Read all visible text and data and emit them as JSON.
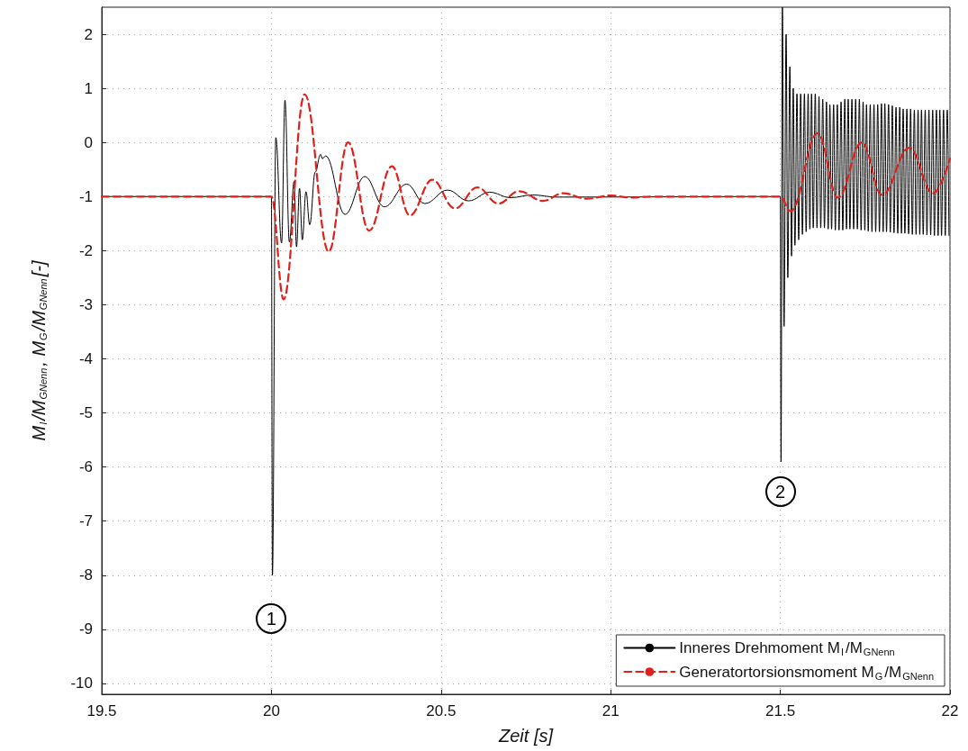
{
  "chart_data": {
    "type": "line",
    "xlabel": "Zeit [s]",
    "ylabel": "M$_{I}$/M$_{GNenn}$, M$_{G}$/M$_{GNenn}$[-]",
    "xlim": [
      19.5,
      22
    ],
    "xticks": [
      19.5,
      20,
      20.5,
      21,
      21.5,
      22
    ],
    "ylim": [
      -10.2,
      2.5
    ],
    "yticks": [
      2,
      1,
      0,
      -1,
      -2,
      -3,
      -4,
      -5,
      -6,
      -7,
      -8,
      -9,
      -10
    ],
    "grid": true,
    "legend": "bottom right",
    "marker": "none",
    "annotations": [
      {
        "text": "1",
        "x": 20.0,
        "y": -8.8
      },
      {
        "text": "2",
        "x": 21.5,
        "y": -6.45
      }
    ],
    "series": [
      {
        "name": "Inneres Drehmoment M$_{I}$/M$_{GNenn}$",
        "color": "#000000",
        "line_style": "solid",
        "x": [
          19.5,
          20.0,
          20.003,
          20.013,
          20.03,
          20.04,
          20.053,
          20.067,
          20.074,
          20.083,
          20.091,
          20.102,
          20.113,
          20.129,
          20.145,
          20.15,
          20.16,
          20.217,
          20.275,
          20.333,
          20.399,
          20.452,
          20.519,
          20.581,
          20.643,
          20.705,
          20.77,
          20.84,
          21.5,
          21.502,
          21.506,
          21.511,
          21.517,
          21.522,
          21.528,
          21.533,
          21.538,
          21.543,
          21.549,
          21.554,
          21.56,
          21.565,
          21.571,
          21.576,
          21.582,
          21.587,
          21.592,
          21.597,
          21.603,
          21.608,
          21.614,
          21.619,
          21.625,
          21.63,
          21.636,
          21.641,
          21.646,
          21.651,
          21.657,
          21.662,
          21.668,
          21.673,
          21.679,
          21.684,
          21.69,
          21.695,
          21.7,
          21.705,
          21.711,
          21.716,
          21.722,
          21.727,
          21.733,
          21.738,
          21.744,
          21.749,
          21.754,
          21.759,
          21.765,
          21.77,
          21.776,
          21.781,
          21.787,
          21.792,
          21.798,
          21.803,
          21.808,
          21.813,
          21.819,
          21.824,
          21.83,
          21.835,
          21.841,
          21.846,
          21.852,
          21.857,
          21.862,
          21.867,
          21.873,
          21.878,
          21.884,
          21.889,
          21.895,
          21.9,
          21.906,
          21.911,
          21.916,
          21.921,
          21.927,
          21.932,
          21.938,
          21.943,
          21.949,
          21.954,
          21.96,
          21.965,
          21.97,
          21.975,
          21.981,
          21.986,
          21.992,
          21.997
        ],
        "values": [
          -1,
          -1,
          -8.0,
          0.09,
          -1.86,
          0.78,
          -1.84,
          -0.72,
          -1.93,
          -0.85,
          -1.8,
          -0.91,
          -1.52,
          -0.55,
          -0.22,
          -0.3,
          -0.25,
          -1.33,
          -0.63,
          -1.19,
          -0.77,
          -1.13,
          -0.88,
          -1.08,
          -0.92,
          -1.02,
          -0.97,
          -1.01,
          -1.0,
          -5.9,
          2.5,
          -3.4,
          2.0,
          -2.5,
          1.4,
          -2.1,
          1.0,
          -1.9,
          0.9,
          -1.8,
          0.9,
          -1.7,
          0.9,
          -1.65,
          0.9,
          -1.6,
          0.9,
          -1.58,
          0.9,
          -1.58,
          0.85,
          -1.58,
          0.8,
          -1.58,
          0.75,
          -1.6,
          0.7,
          -1.6,
          0.7,
          -1.62,
          0.7,
          -1.62,
          0.75,
          -1.62,
          0.8,
          -1.6,
          0.8,
          -1.6,
          0.8,
          -1.6,
          0.8,
          -1.6,
          0.8,
          -1.62,
          0.75,
          -1.62,
          0.7,
          -1.64,
          0.7,
          -1.65,
          0.7,
          -1.65,
          0.7,
          -1.65,
          0.72,
          -1.65,
          0.72,
          -1.65,
          0.7,
          -1.66,
          0.68,
          -1.67,
          0.65,
          -1.68,
          0.65,
          -1.68,
          0.62,
          -1.68,
          0.62,
          -1.69,
          0.62,
          -1.7,
          0.6,
          -1.7,
          0.6,
          -1.7,
          0.6,
          -1.7,
          0.6,
          -1.71,
          0.6,
          -1.71,
          0.6,
          -1.72,
          0.6,
          -1.72,
          0.6,
          -1.72,
          0.6,
          -1.72,
          0.6,
          -1.72
        ]
      },
      {
        "name": "Generatortorsionsmoment M$_{G}$/M$_{GNenn}$",
        "color": "#e0201b",
        "line_style": "dashed",
        "x": [
          19.5,
          20.0,
          20.036,
          20.098,
          20.169,
          20.226,
          20.288,
          20.355,
          20.408,
          20.474,
          20.541,
          20.607,
          20.669,
          20.73,
          20.8,
          20.86,
          20.93,
          21.0,
          21.06,
          21.12,
          21.5,
          21.53,
          21.61,
          21.67,
          21.74,
          21.8,
          21.88,
          21.95,
          22.0
        ],
        "values": [
          -1,
          -1,
          -2.9,
          0.89,
          -2.02,
          0.0,
          -1.63,
          -0.44,
          -1.35,
          -0.69,
          -1.22,
          -0.83,
          -1.13,
          -0.9,
          -1.08,
          -0.94,
          -1.04,
          -0.98,
          -1.02,
          -1.0,
          -1.0,
          -1.27,
          0.17,
          -1.02,
          0.0,
          -0.97,
          -0.1,
          -0.94,
          -0.3
        ]
      }
    ]
  }
}
